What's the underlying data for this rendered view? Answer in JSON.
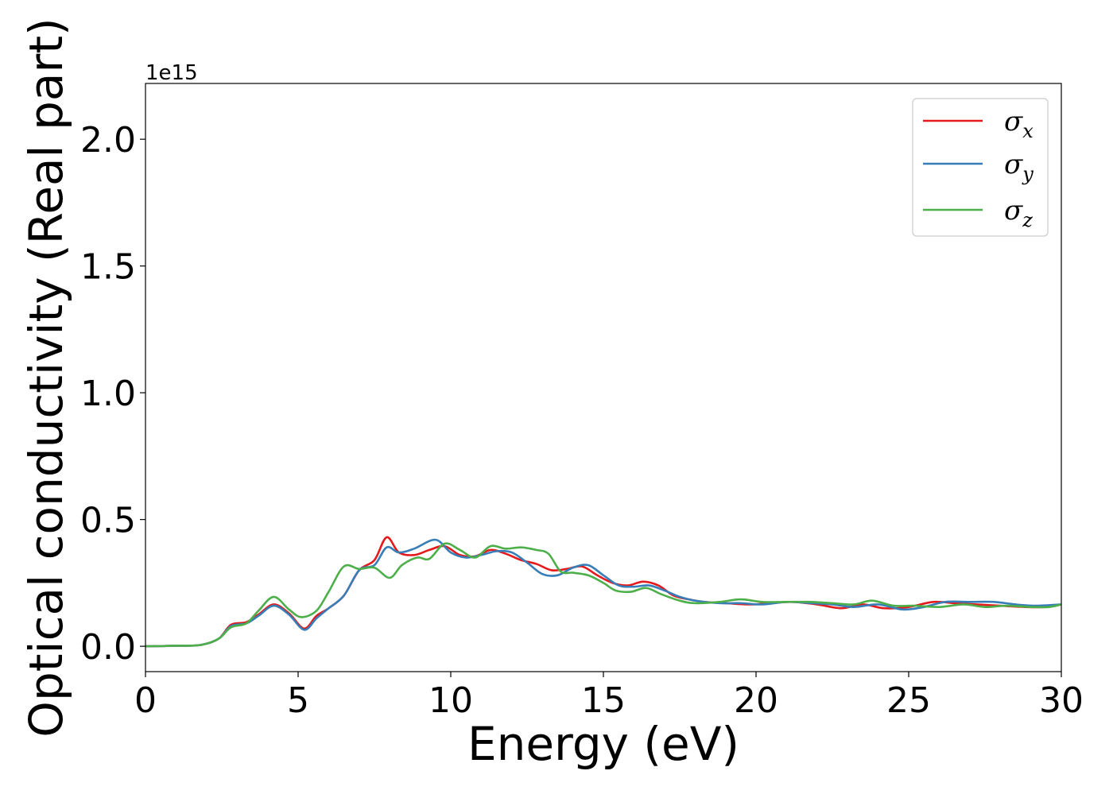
{
  "chart_data": {
    "type": "line",
    "xlabel": "Energy (eV)",
    "ylabel": "Optical conductivity (Real part)",
    "y_offset_text": "1e15",
    "y_multiplier": 1000000000000000.0,
    "xlim": [
      0,
      30
    ],
    "ylim": [
      -0.1,
      2.22
    ],
    "xticks": [
      0,
      5,
      10,
      15,
      20,
      25,
      30
    ],
    "xtick_labels": [
      "0",
      "5",
      "10",
      "15",
      "20",
      "25",
      "30"
    ],
    "yticks": [
      0.0,
      0.5,
      1.0,
      1.5,
      2.0
    ],
    "ytick_labels": [
      "0.0",
      "0.5",
      "1.0",
      "1.5",
      "2.0"
    ],
    "grid": false,
    "legend_position": "top-right",
    "series": [
      {
        "name": "σx",
        "symbol": "σ",
        "subscript": "x",
        "color": "#e41a1c",
        "x": [
          0,
          1,
          1.8,
          2.4,
          2.8,
          3.3,
          3.7,
          4.2,
          4.7,
          5.2,
          5.6,
          6.0,
          6.5,
          7.0,
          7.5,
          7.9,
          8.3,
          8.8,
          9.3,
          9.8,
          10.3,
          10.8,
          11.3,
          11.8,
          12.3,
          12.8,
          13.3,
          13.8,
          14.3,
          14.8,
          15.3,
          15.8,
          16.3,
          16.8,
          17.3,
          17.8,
          18.3,
          19.0,
          19.8,
          20.5,
          21.2,
          22.0,
          22.8,
          23.5,
          24.2,
          25.0,
          25.8,
          26.5,
          27.2,
          28.0,
          28.8,
          29.5,
          30
        ],
        "y": [
          0.0,
          0.002,
          0.005,
          0.03,
          0.085,
          0.095,
          0.125,
          0.165,
          0.13,
          0.07,
          0.12,
          0.15,
          0.2,
          0.3,
          0.34,
          0.43,
          0.37,
          0.36,
          0.38,
          0.395,
          0.36,
          0.355,
          0.38,
          0.365,
          0.34,
          0.325,
          0.3,
          0.305,
          0.315,
          0.28,
          0.25,
          0.24,
          0.255,
          0.24,
          0.2,
          0.185,
          0.175,
          0.17,
          0.165,
          0.17,
          0.175,
          0.165,
          0.15,
          0.165,
          0.15,
          0.155,
          0.175,
          0.17,
          0.165,
          0.16,
          0.155,
          0.155,
          0.165
        ]
      },
      {
        "name": "σy",
        "symbol": "σ",
        "subscript": "y",
        "color": "#377eb8",
        "x": [
          0,
          1,
          1.8,
          2.4,
          2.8,
          3.3,
          3.7,
          4.2,
          4.7,
          5.2,
          5.6,
          6.0,
          6.5,
          7.0,
          7.5,
          7.9,
          8.3,
          8.8,
          9.5,
          10.0,
          10.5,
          11.0,
          11.5,
          12.0,
          12.5,
          13.0,
          13.5,
          14.0,
          14.5,
          15.0,
          15.5,
          16.0,
          16.5,
          17.0,
          17.5,
          18.0,
          18.8,
          19.5,
          20.2,
          21.0,
          21.8,
          22.5,
          23.2,
          24.0,
          24.8,
          25.5,
          26.2,
          27.0,
          27.8,
          28.5,
          29.2,
          30
        ],
        "y": [
          0.0,
          0.002,
          0.005,
          0.03,
          0.08,
          0.09,
          0.12,
          0.16,
          0.125,
          0.065,
          0.11,
          0.15,
          0.2,
          0.3,
          0.32,
          0.39,
          0.37,
          0.385,
          0.42,
          0.37,
          0.35,
          0.36,
          0.375,
          0.37,
          0.33,
          0.285,
          0.28,
          0.31,
          0.32,
          0.28,
          0.24,
          0.235,
          0.24,
          0.22,
          0.195,
          0.18,
          0.17,
          0.17,
          0.165,
          0.175,
          0.17,
          0.165,
          0.155,
          0.165,
          0.145,
          0.155,
          0.175,
          0.175,
          0.175,
          0.165,
          0.16,
          0.165
        ]
      },
      {
        "name": "σz",
        "symbol": "σ",
        "subscript": "z",
        "color": "#4daf4a",
        "x": [
          0,
          1,
          1.8,
          2.4,
          2.8,
          3.3,
          3.7,
          4.2,
          4.7,
          5.1,
          5.6,
          6.0,
          6.5,
          7.0,
          7.5,
          8.0,
          8.4,
          8.9,
          9.3,
          9.8,
          10.3,
          10.8,
          11.3,
          11.8,
          12.3,
          12.8,
          13.2,
          13.6,
          14.0,
          14.5,
          15.0,
          15.4,
          15.9,
          16.4,
          16.9,
          17.5,
          18.0,
          18.8,
          19.5,
          20.2,
          21.0,
          21.8,
          22.5,
          23.2,
          23.8,
          24.5,
          25.2,
          26.0,
          26.8,
          27.5,
          28.2,
          29.0,
          29.6,
          30
        ],
        "y": [
          0.0,
          0.002,
          0.005,
          0.03,
          0.075,
          0.09,
          0.14,
          0.195,
          0.145,
          0.115,
          0.14,
          0.215,
          0.315,
          0.305,
          0.31,
          0.27,
          0.32,
          0.35,
          0.345,
          0.405,
          0.38,
          0.35,
          0.395,
          0.385,
          0.39,
          0.38,
          0.365,
          0.295,
          0.29,
          0.28,
          0.25,
          0.22,
          0.215,
          0.23,
          0.205,
          0.18,
          0.17,
          0.175,
          0.185,
          0.175,
          0.175,
          0.175,
          0.17,
          0.165,
          0.18,
          0.16,
          0.16,
          0.155,
          0.165,
          0.155,
          0.16,
          0.155,
          0.155,
          0.165
        ]
      }
    ]
  }
}
